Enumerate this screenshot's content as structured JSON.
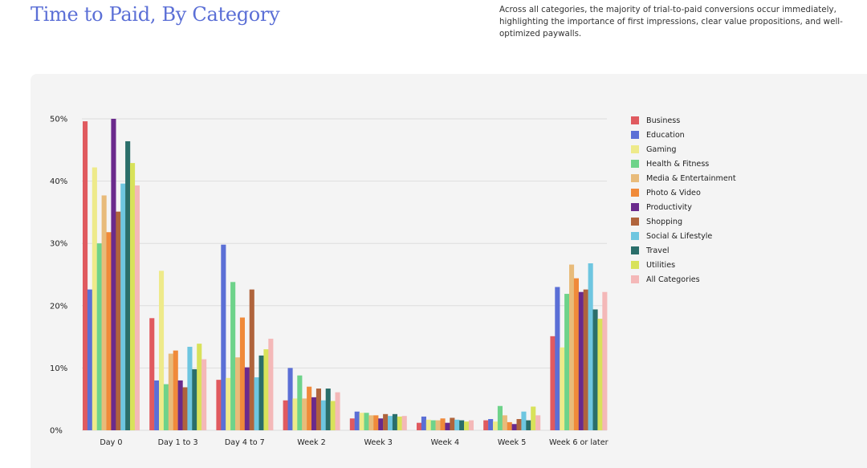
{
  "header": {
    "title": "Time to Paid, By Category",
    "subtitle": "Across all categories, the majority of trial-to-paid conversions occur immediately, highlighting the importance of first impressions, clear value propositions, and well-optimized paywalls."
  },
  "colors": {
    "title": "#5b6fd6",
    "panel_background": "#f4f4f4",
    "gridline": "#dddddd"
  },
  "chart_data": {
    "type": "bar",
    "categories": [
      "Day 0",
      "Day 1 to 3",
      "Day 4 to 7",
      "Week 2",
      "Week 3",
      "Week 4",
      "Week 5",
      "Week 6 or later"
    ],
    "y_ticks": [
      "0%",
      "10%",
      "20%",
      "30%",
      "40%",
      "50%"
    ],
    "ylim": [
      0,
      50
    ],
    "grid": true,
    "legend_position": "right",
    "series": [
      {
        "name": "Business",
        "color": "#e05a5f",
        "values": [
          49.6,
          18.0,
          8.1,
          4.8,
          1.9,
          1.2,
          1.6,
          15.1
        ]
      },
      {
        "name": "Education",
        "color": "#5b6fd6",
        "values": [
          22.6,
          8.0,
          29.8,
          10.0,
          3.0,
          2.2,
          1.8,
          23.0
        ]
      },
      {
        "name": "Gaming",
        "color": "#eeea8a",
        "values": [
          42.2,
          25.6,
          8.4,
          5.1,
          2.8,
          1.7,
          1.4,
          13.3
        ]
      },
      {
        "name": "Health & Fitness",
        "color": "#6ed38a",
        "values": [
          30.0,
          7.4,
          23.8,
          8.8,
          2.8,
          1.6,
          3.9,
          21.9
        ]
      },
      {
        "name": "Media & Entertainment",
        "color": "#e8bb7a",
        "values": [
          37.7,
          12.3,
          11.7,
          5.1,
          2.4,
          1.6,
          2.4,
          26.6
        ]
      },
      {
        "name": "Photo & Video",
        "color": "#f08a3a",
        "values": [
          31.8,
          12.8,
          18.1,
          7.0,
          2.4,
          1.9,
          1.3,
          24.4
        ]
      },
      {
        "name": "Productivity",
        "color": "#6a2a8c",
        "values": [
          50.0,
          8.0,
          10.1,
          5.3,
          1.9,
          1.2,
          1.0,
          22.2
        ]
      },
      {
        "name": "Shopping",
        "color": "#b0643c",
        "values": [
          35.1,
          6.9,
          22.6,
          6.7,
          2.6,
          2.0,
          1.8,
          22.6
        ]
      },
      {
        "name": "Social & Lifestyle",
        "color": "#6ec6e0",
        "values": [
          39.6,
          13.4,
          8.5,
          4.8,
          2.3,
          1.7,
          3.0,
          26.8
        ]
      },
      {
        "name": "Travel",
        "color": "#2a6e6a",
        "values": [
          46.4,
          9.8,
          12.0,
          6.7,
          2.6,
          1.6,
          1.6,
          19.4
        ]
      },
      {
        "name": "Utilities",
        "color": "#d8e25a",
        "values": [
          42.9,
          13.9,
          13.0,
          4.7,
          2.2,
          1.4,
          3.8,
          17.9
        ]
      },
      {
        "name": "All Categories",
        "color": "#f4b8b8",
        "values": [
          39.3,
          11.4,
          14.7,
          6.1,
          2.3,
          1.6,
          2.4,
          22.2
        ]
      }
    ]
  }
}
